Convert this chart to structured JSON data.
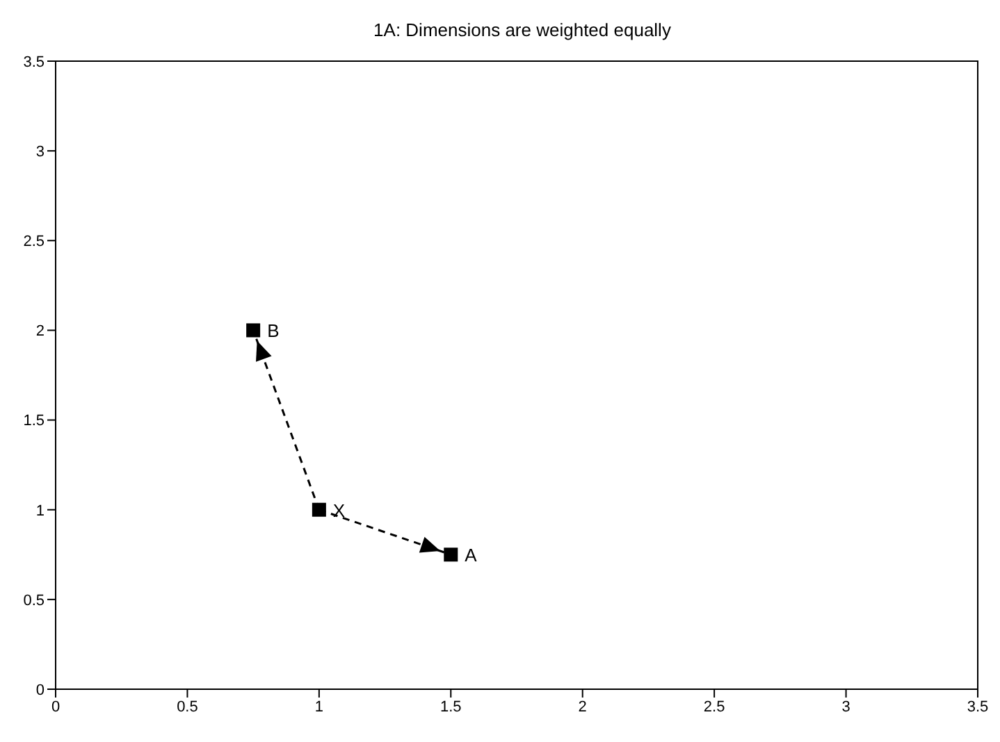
{
  "chart_data": {
    "type": "scatter",
    "title": "1A: Dimensions are weighted equally",
    "series": [
      {
        "color": "#000000",
        "marker": "square",
        "x": [
          0.75,
          1,
          1.5
        ],
        "values": [
          2,
          1,
          0.75
        ]
      },
      {
        "type": "line",
        "color": "#000000",
        "line_style": "dashed",
        "marker": "none",
        "x": [
          1,
          0.75
        ],
        "values": [
          1,
          2
        ]
      },
      {
        "type": "line",
        "color": "#000000",
        "line_style": "dashed",
        "marker": "none",
        "x": [
          1,
          1.5
        ],
        "values": [
          1,
          0.75
        ]
      }
    ],
    "annotations": [
      {
        "text": "B",
        "x": 0.75,
        "y": 2
      },
      {
        "text": "X",
        "x": 1,
        "y": 1
      },
      {
        "text": "A",
        "x": 1.5,
        "y": 0.75
      }
    ],
    "xlim": [
      0,
      3.5
    ],
    "ylim": [
      0,
      3.5
    ],
    "xticks": [
      0,
      0.5,
      1,
      1.5,
      2,
      2.5,
      3,
      3.5
    ],
    "yticks": [
      0,
      0.5,
      1,
      1.5,
      2,
      2.5,
      3,
      3.5
    ],
    "grid": false,
    "legend": false
  }
}
